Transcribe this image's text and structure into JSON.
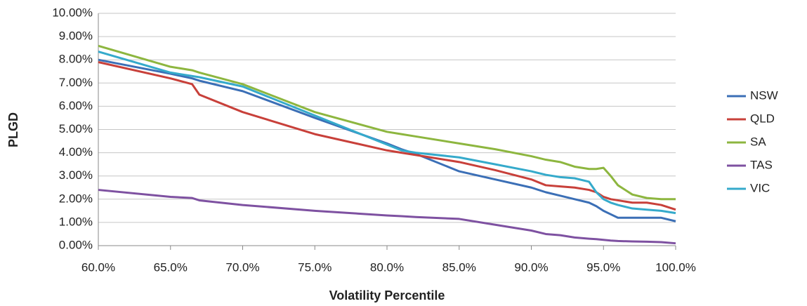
{
  "chart_data": {
    "type": "line",
    "x_label": "Volatility Percentile",
    "y_label": "PLGD",
    "x": [
      60,
      65,
      66.5,
      67,
      70,
      75,
      80,
      81,
      82,
      85,
      87.5,
      90,
      91,
      92,
      93,
      94,
      94.5,
      95,
      95.5,
      96,
      97,
      98,
      99,
      100
    ],
    "series": [
      {
        "name": "NSW",
        "color": "#3b6fb6",
        "values": [
          8.0,
          7.4,
          7.2,
          7.1,
          6.65,
          5.5,
          4.4,
          4.15,
          3.95,
          3.2,
          2.85,
          2.5,
          2.3,
          2.15,
          2.0,
          1.85,
          1.7,
          1.5,
          1.35,
          1.2,
          1.2,
          1.2,
          1.2,
          1.05
        ]
      },
      {
        "name": "QLD",
        "color": "#c8403a",
        "values": [
          7.9,
          7.2,
          6.95,
          6.5,
          5.75,
          4.8,
          4.1,
          4.0,
          3.9,
          3.6,
          3.25,
          2.85,
          2.6,
          2.55,
          2.5,
          2.4,
          2.3,
          2.1,
          2.0,
          1.95,
          1.85,
          1.85,
          1.75,
          1.55
        ]
      },
      {
        "name": "SA",
        "color": "#8db63f",
        "values": [
          8.6,
          7.7,
          7.55,
          7.45,
          6.95,
          5.75,
          4.9,
          4.8,
          4.7,
          4.4,
          4.15,
          3.85,
          3.7,
          3.6,
          3.4,
          3.3,
          3.3,
          3.35,
          3.0,
          2.6,
          2.2,
          2.05,
          2.0,
          2.0
        ]
      },
      {
        "name": "TAS",
        "color": "#7e51a1",
        "values": [
          2.4,
          2.1,
          2.05,
          1.95,
          1.75,
          1.5,
          1.3,
          1.27,
          1.23,
          1.15,
          0.9,
          0.65,
          0.5,
          0.45,
          0.35,
          0.3,
          0.28,
          0.25,
          0.22,
          0.2,
          0.18,
          0.17,
          0.15,
          0.1
        ]
      },
      {
        "name": "VIC",
        "color": "#35aacb",
        "values": [
          8.35,
          7.45,
          7.3,
          7.25,
          6.85,
          5.6,
          4.35,
          4.1,
          4.0,
          3.8,
          3.5,
          3.2,
          3.05,
          2.95,
          2.9,
          2.75,
          2.3,
          2.0,
          1.85,
          1.75,
          1.6,
          1.55,
          1.5,
          1.4
        ]
      }
    ],
    "xlim": [
      60,
      100
    ],
    "xticks": [
      {
        "value": 60,
        "label": "60.0%"
      },
      {
        "value": 65,
        "label": "65.0%"
      },
      {
        "value": 70,
        "label": "70.0%"
      },
      {
        "value": 75,
        "label": "75.0%"
      },
      {
        "value": 80,
        "label": "80.0%"
      },
      {
        "value": 85,
        "label": "85.0%"
      },
      {
        "value": 90,
        "label": "90.0%"
      },
      {
        "value": 95,
        "label": "95.0%"
      },
      {
        "value": 100,
        "label": "100.0%"
      }
    ],
    "ylim": [
      0,
      10
    ],
    "yticks": [
      {
        "value": 0,
        "label": "0.00%"
      },
      {
        "value": 1,
        "label": "1.00%"
      },
      {
        "value": 2,
        "label": "2.00%"
      },
      {
        "value": 3,
        "label": "3.00%"
      },
      {
        "value": 4,
        "label": "4.00%"
      },
      {
        "value": 5,
        "label": "5.00%"
      },
      {
        "value": 6,
        "label": "6.00%"
      },
      {
        "value": 7,
        "label": "7.00%"
      },
      {
        "value": 8,
        "label": "8.00%"
      },
      {
        "value": 9,
        "label": "9.00%"
      },
      {
        "value": 10,
        "label": "10.00%"
      }
    ],
    "grid": true,
    "legend": "right"
  }
}
